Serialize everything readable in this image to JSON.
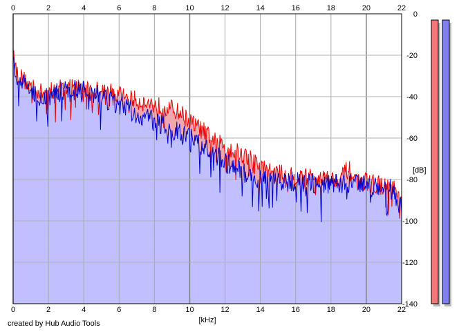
{
  "credit": "created by Hub Audio Tools",
  "colors": {
    "left_channel": "#ee0000",
    "right_channel": "#0000cc",
    "left_fill": "#f0a8b0",
    "right_fill": "#c0c0ff",
    "meter_left": "#f07878",
    "meter_right": "#8080f0"
  },
  "chart_data": {
    "type": "area",
    "xlabel": "[kHz]",
    "ylabel": "[dB]",
    "xlim": [
      0,
      22
    ],
    "ylim": [
      -140,
      0
    ],
    "x_ticks": [
      "0",
      "2",
      "4",
      "6",
      "8",
      "10",
      "12",
      "14",
      "16",
      "18",
      "20",
      "22"
    ],
    "y_ticks": [
      "0",
      "-20",
      "-40",
      "-60",
      "-80",
      "-100",
      "-120",
      "-140"
    ],
    "grid": true,
    "series": [
      {
        "channel": "left",
        "x": [
          0,
          0.2,
          0.5,
          1,
          1.5,
          2,
          2.5,
          3,
          3.5,
          4,
          4.5,
          5,
          5.5,
          6,
          6.5,
          7,
          7.5,
          8,
          8.5,
          9,
          9.5,
          10,
          10.5,
          11,
          11.5,
          12,
          12.5,
          13,
          13.5,
          14,
          14.5,
          15,
          15.5,
          16,
          16.5,
          17,
          17.5,
          18,
          18.5,
          19,
          19.5,
          20,
          20.5,
          21,
          21.5,
          22
        ],
        "values": [
          -20,
          -28,
          -31,
          -35,
          -38,
          -38,
          -36,
          -35,
          -35,
          -36,
          -37,
          -37,
          -38,
          -39,
          -40,
          -42,
          -43,
          -44,
          -45,
          -46,
          -48,
          -52,
          -55,
          -58,
          -62,
          -64,
          -66,
          -68,
          -70,
          -74,
          -76,
          -77,
          -78,
          -79,
          -79,
          -79,
          -79,
          -80,
          -79,
          -75,
          -81,
          -81,
          -82,
          -83,
          -84,
          -92
        ]
      },
      {
        "channel": "right",
        "x": [
          0,
          0.2,
          0.5,
          1,
          1.5,
          2,
          2.5,
          3,
          3.5,
          4,
          4.5,
          5,
          5.5,
          6,
          6.5,
          7,
          7.5,
          8,
          8.5,
          9,
          9.5,
          10,
          10.5,
          11,
          11.5,
          12,
          12.5,
          13,
          13.5,
          14,
          14.5,
          15,
          15.5,
          16,
          16.5,
          17,
          17.5,
          18,
          18.5,
          19,
          19.5,
          20,
          20.5,
          21,
          21.5,
          22
        ],
        "values": [
          -22,
          -30,
          -33,
          -37,
          -40,
          -40,
          -38,
          -37,
          -37,
          -37,
          -38,
          -40,
          -42,
          -44,
          -46,
          -48,
          -50,
          -52,
          -54,
          -56,
          -58,
          -60,
          -63,
          -66,
          -68,
          -72,
          -74,
          -77,
          -78,
          -80,
          -80,
          -81,
          -81,
          -81,
          -81,
          -82,
          -82,
          -82,
          -82,
          -82,
          -83,
          -83,
          -83,
          -84,
          -85,
          -94
        ]
      }
    ],
    "meters": [
      {
        "channel": "left",
        "level": -3
      },
      {
        "channel": "right",
        "level": -3
      }
    ]
  }
}
